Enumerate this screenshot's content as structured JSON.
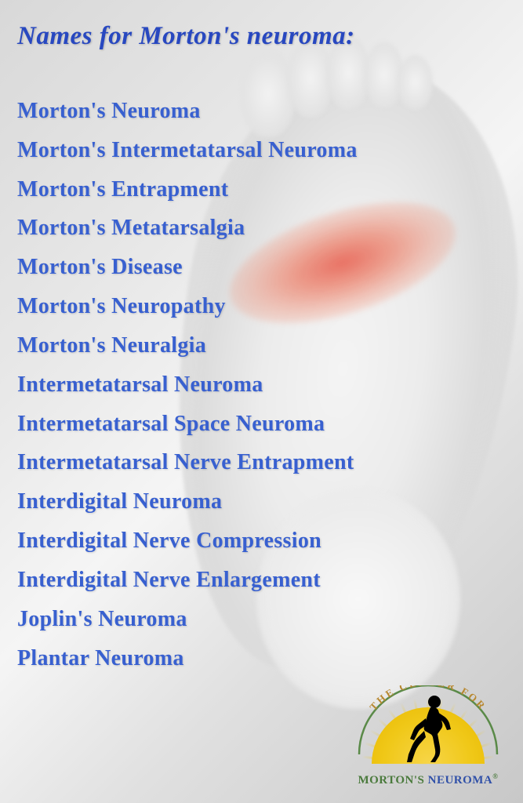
{
  "title": {
    "text": "Names for Morton's neuroma:",
    "color": "#2848c0",
    "fontsize": 33
  },
  "list": {
    "color": "#3860d0",
    "fontsize": 28,
    "line_height": 1.78,
    "items": [
      "Morton's Neuroma",
      "Morton's Intermetatarsal Neuroma",
      "Morton's Entrapment",
      "Morton's Metatarsalgia",
      "Morton's Disease",
      "Morton's Neuropathy",
      "Morton's Neuralgia",
      "Intermetatarsal Neuroma",
      "Intermetatarsal Space Neuroma",
      "Intermetatarsal Nerve Entrapment",
      "Interdigital Neuroma",
      "Interdigital Nerve Compression",
      "Interdigital Nerve Enlargement",
      "Joplin's Neuroma",
      "Plantar Neuroma"
    ]
  },
  "background": {
    "pain_color": "#e63c28",
    "foot_light": "#f5f5f5",
    "foot_shadow": "#c8c8c8"
  },
  "logo": {
    "arc_text": "THE CENTER FOR",
    "arc_color": "#b88830",
    "brand_word1": "MORTON'S",
    "brand_word2": "NEUROMA",
    "brand_color1": "#4a7a3c",
    "brand_color2": "#3050a8",
    "sun_color": "#f0c818",
    "runner_color": "#000000",
    "arc_stroke": "#5a8a48"
  }
}
